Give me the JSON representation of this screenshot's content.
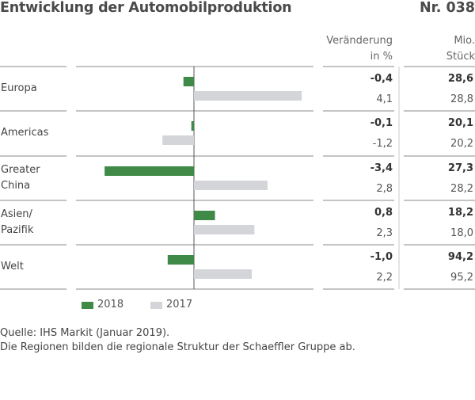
{
  "header": {
    "title": "Entwicklung der Automobilproduktion",
    "number": "Nr. 038"
  },
  "columns": {
    "change_line1": "Veränderung",
    "change_line2": "in %",
    "units_line1": "Mio.",
    "units_line2": "Stück"
  },
  "rows": [
    {
      "label_line1": "Europa",
      "label_line2": "",
      "change_2018": "-0,4",
      "change_2017": "4,1",
      "units_2018": "28,6",
      "units_2017": "28,8"
    },
    {
      "label_line1": "Americas",
      "label_line2": "",
      "change_2018": "-0,1",
      "change_2017": "-1,2",
      "units_2018": "20,1",
      "units_2017": "20,2"
    },
    {
      "label_line1": "Greater",
      "label_line2": "China",
      "change_2018": "-3,4",
      "change_2017": "2,8",
      "units_2018": "27,3",
      "units_2017": "28,2"
    },
    {
      "label_line1": "Asien/",
      "label_line2": "Pazifik",
      "change_2018": "0,8",
      "change_2017": "2,3",
      "units_2018": "18,2",
      "units_2017": "18,0"
    },
    {
      "label_line1": "Welt",
      "label_line2": "",
      "change_2018": "-1,0",
      "change_2017": "2,2",
      "units_2018": "94,2",
      "units_2017": "95,2"
    }
  ],
  "legend": {
    "series_2018": "2018",
    "series_2017": "2017"
  },
  "footer": {
    "source": "Quelle: IHS Markit (Januar 2019).",
    "note": "Die Regionen bilden die regionale Struktur der Schaeffler Gruppe ab."
  },
  "colors": {
    "series_2018": "#3f8a47",
    "series_2017": "#d3d5d8",
    "rule": "#888888",
    "axis": "#555555"
  },
  "chart_data": {
    "type": "bar",
    "orientation": "horizontal",
    "categories": [
      "Europa",
      "Americas",
      "Greater China",
      "Asien/Pazifik",
      "Welt"
    ],
    "series": [
      {
        "name": "2018",
        "values": [
          -0.4,
          -0.1,
          -3.4,
          0.8,
          -1.0
        ]
      },
      {
        "name": "2017",
        "values": [
          4.1,
          -1.2,
          2.8,
          2.3,
          2.2
        ]
      }
    ],
    "xlim": [
      -3.4,
      4.1
    ],
    "legend": "bottom"
  }
}
